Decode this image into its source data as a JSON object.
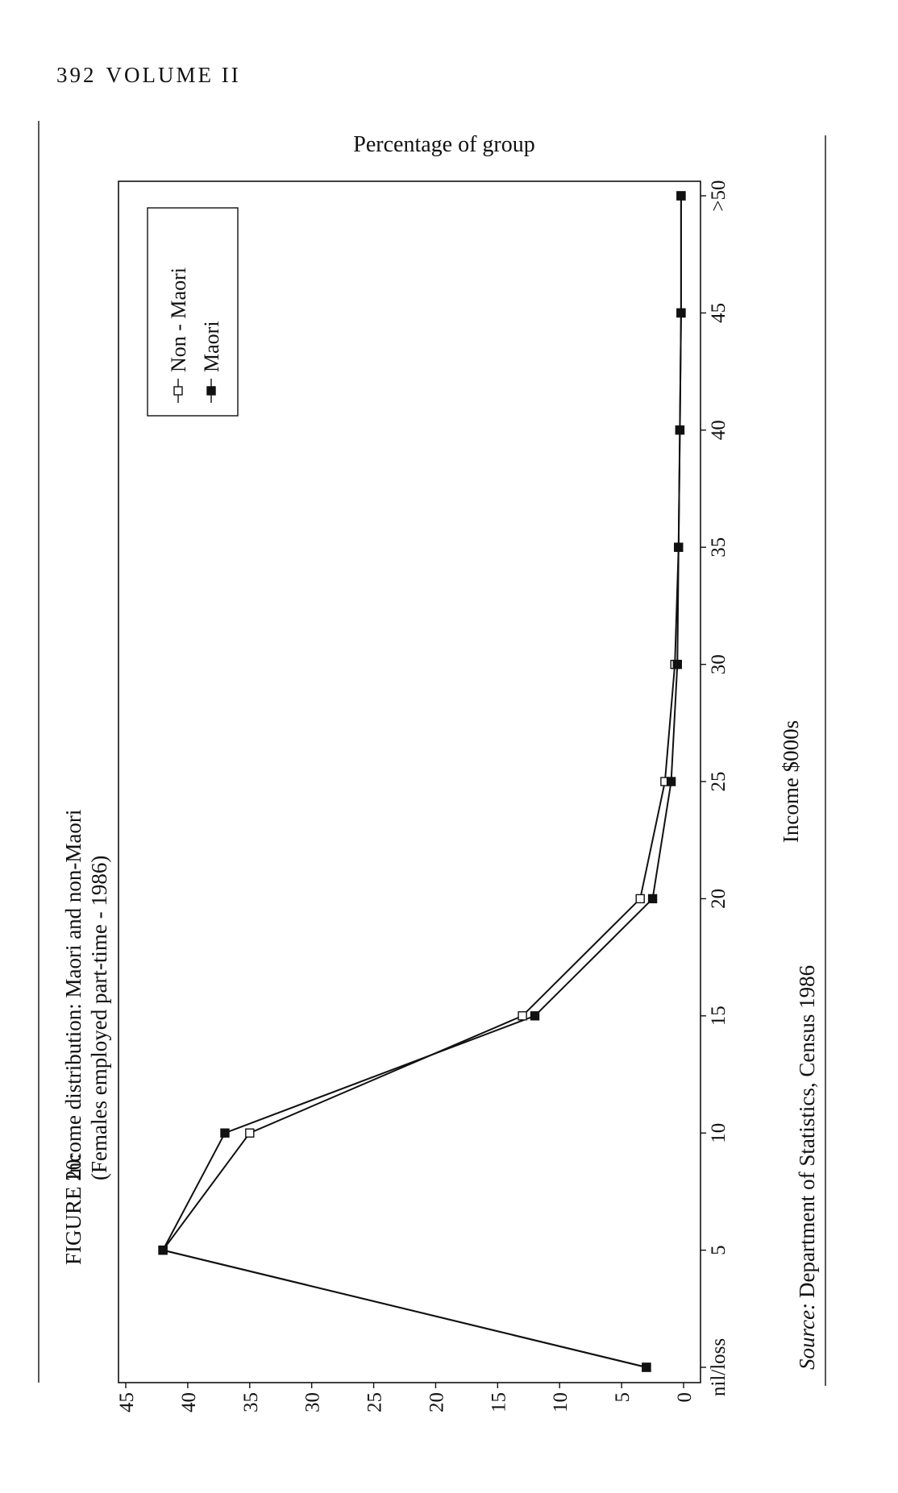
{
  "page": {
    "number": "392",
    "running_head": "VOLUME II"
  },
  "figure": {
    "label": "FIGURE 20:",
    "caption_line1": "Income distribution: Maori and non-Maori",
    "caption_line2": "(Females employed part-time - 1986)"
  },
  "source": {
    "prefix": "Source:",
    "text": "Department of Statistics, Census 1986"
  },
  "colors": {
    "ink": "#111111",
    "background": "#ffffff"
  },
  "chart_data": {
    "type": "line",
    "orientation": "rotated-90-ccw",
    "categories": [
      "nil/loss",
      "5",
      "10",
      "15",
      "20",
      "25",
      "30",
      "35",
      "40",
      "45",
      ">50"
    ],
    "series": [
      {
        "name": "Non - Maori",
        "marker": "hollow-square",
        "values": [
          3,
          42,
          35,
          13,
          3.5,
          1.5,
          0.7,
          0.4,
          0.3,
          0.2,
          0.2
        ]
      },
      {
        "name": "Maori",
        "marker": "filled-square",
        "values": [
          3,
          42,
          37,
          12,
          2.5,
          1,
          0.5,
          0.4,
          0.3,
          0.2,
          0.2
        ]
      }
    ],
    "xlabel": "Income $000s",
    "ylabel": "Percentage of group",
    "ylim": [
      0,
      45
    ],
    "yticks": [
      "0",
      "5",
      "10",
      "15",
      "20",
      "25",
      "30",
      "35",
      "40",
      "45"
    ],
    "grid": false,
    "legend_position": "top-left"
  }
}
